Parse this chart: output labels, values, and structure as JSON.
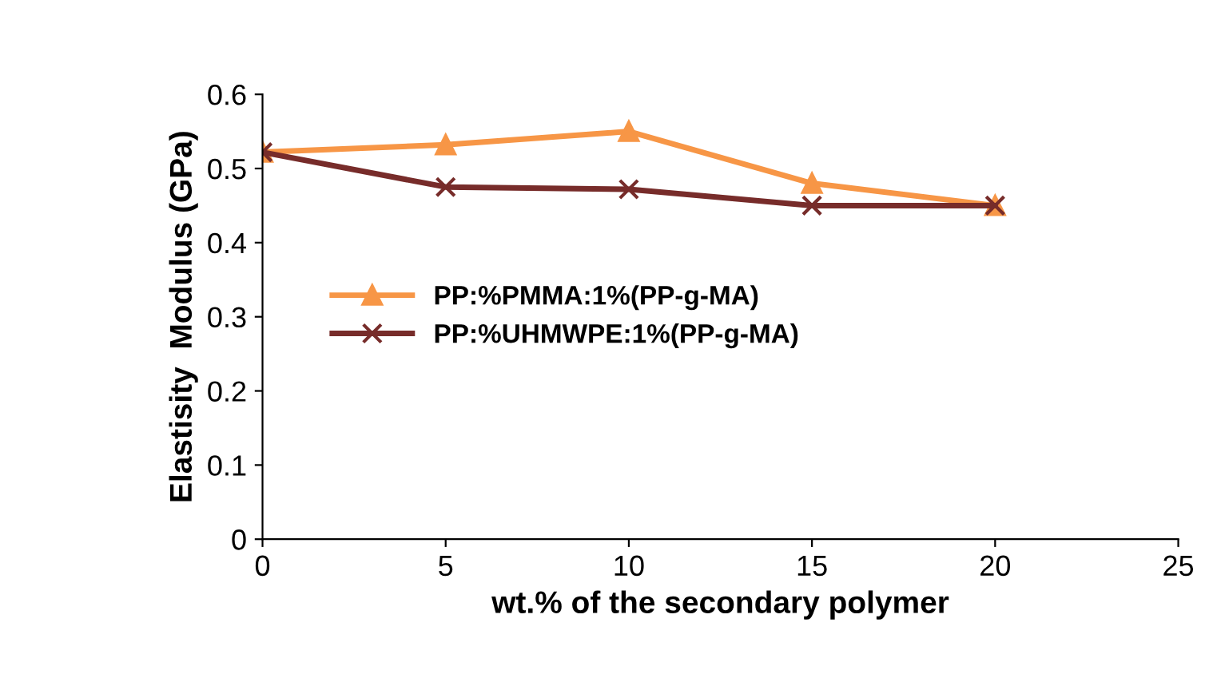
{
  "chart_data": {
    "type": "line",
    "xlabel": "wt.% of the secondary polymer",
    "ylabel": "Elastisity  Modulus (GPa)",
    "x": [
      0,
      5,
      10,
      15,
      20
    ],
    "series": [
      {
        "name": "PP:%PMMA:1%(PP-g-MA)",
        "color": "#f79646",
        "marker": "triangle",
        "values": [
          0.522,
          0.532,
          0.55,
          0.48,
          0.45
        ]
      },
      {
        "name": "PP:%UHMWPE:1%(PP-g-MA)",
        "color": "#772c2a",
        "marker": "cross",
        "values": [
          0.522,
          0.475,
          0.472,
          0.45,
          0.45
        ]
      }
    ],
    "xlim": [
      0,
      25
    ],
    "xticks": [
      0,
      5,
      10,
      15,
      20,
      25
    ],
    "ylim": [
      0,
      0.6
    ],
    "yticks": [
      0,
      0.1,
      0.2,
      0.3,
      0.4,
      0.5,
      0.6
    ],
    "grid": false,
    "legend": "left",
    "line_style": "solid"
  }
}
